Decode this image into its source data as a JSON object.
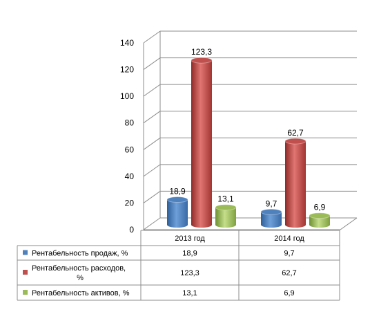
{
  "chart_data": {
    "type": "bar",
    "categories": [
      "2013 год",
      "2014 год"
    ],
    "series": [
      {
        "name": "Рентабельность продаж, %",
        "values": [
          18.9,
          9.7
        ],
        "labels": [
          "18,9",
          "9,7"
        ],
        "color": "#4f81bd"
      },
      {
        "name": "Рентабельность расходов, %",
        "values": [
          123.3,
          62.7
        ],
        "labels": [
          "123,3",
          "62,7"
        ],
        "color": "#c0504d"
      },
      {
        "name": "Рентабельность активов, %",
        "values": [
          13.1,
          6.9
        ],
        "labels": [
          "13,1",
          "6,9"
        ],
        "color": "#9bbb59"
      }
    ],
    "ylim": [
      0,
      140
    ],
    "yticks": [
      0,
      20,
      40,
      60,
      80,
      100,
      120,
      140
    ],
    "grid": true,
    "legend": "data-table"
  }
}
